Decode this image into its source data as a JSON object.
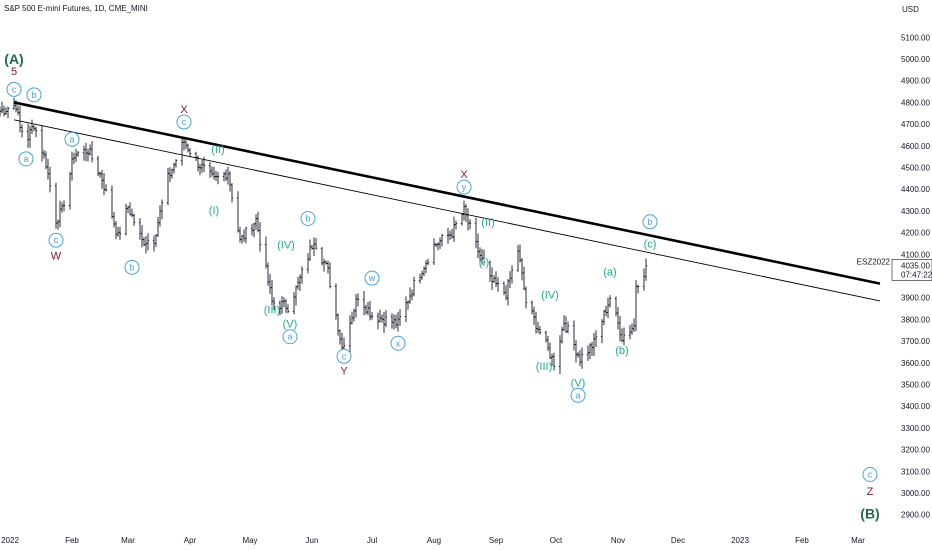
{
  "chart_data": {
    "type": "candlestick",
    "title": "S&P 500 E-mini Futures, 1D, CME_MINI",
    "currency": "USD",
    "colors": {
      "wave_teal": "#22ab94",
      "wave_blue": "#4aa3df",
      "wave_maroon": "#8e1b2c",
      "wave_green": "#1e6b52",
      "candle": "#131722",
      "price_tag_bg": "#ffffff"
    },
    "ylim": [
      2820,
      5180
    ],
    "xlim": [
      "2021-12-27",
      "2023-03-18"
    ],
    "y_ticks": [
      "5100.00",
      "5000.00",
      "4900.00",
      "4800.00",
      "4700.00",
      "4600.00",
      "4500.00",
      "4400.00",
      "4300.00",
      "4200.00",
      "4100.00",
      "4000.00",
      "3900.00",
      "3800.00",
      "3700.00",
      "3600.00",
      "3500.00",
      "3400.00",
      "3300.00",
      "3200.00",
      "3100.00",
      "3000.00",
      "2900.00"
    ],
    "y_tick_values": [
      5100,
      5000,
      4900,
      4800,
      4700,
      4600,
      4500,
      4400,
      4300,
      4200,
      4100,
      4000,
      3900,
      3800,
      3700,
      3600,
      3500,
      3400,
      3300,
      3200,
      3100,
      3000,
      2900
    ],
    "x_ticks": [
      {
        "label": "2022",
        "date": "2022-01-01"
      },
      {
        "label": "Feb",
        "date": "2022-02-01"
      },
      {
        "label": "Mar",
        "date": "2022-03-01"
      },
      {
        "label": "Apr",
        "date": "2022-04-01"
      },
      {
        "label": "May",
        "date": "2022-05-01"
      },
      {
        "label": "Jun",
        "date": "2022-06-01"
      },
      {
        "label": "Jul",
        "date": "2022-07-01"
      },
      {
        "label": "Aug",
        "date": "2022-08-01"
      },
      {
        "label": "Sep",
        "date": "2022-09-01"
      },
      {
        "label": "Oct",
        "date": "2022-10-01"
      },
      {
        "label": "Nov",
        "date": "2022-11-01"
      },
      {
        "label": "Dec",
        "date": "2022-12-01"
      },
      {
        "label": "2023",
        "date": "2023-01-01"
      },
      {
        "label": "Feb",
        "date": "2023-02-01"
      },
      {
        "label": "Mar",
        "date": "2023-03-01"
      }
    ],
    "price_tag": {
      "symbol": "ESZ2022",
      "price": "4035.00",
      "price_value": 4035,
      "countdown": "07:47:22"
    },
    "close_path": [
      [
        "2021-12-27",
        4760
      ],
      [
        "2022-01-04",
        4790
      ],
      [
        "2022-01-06",
        4680
      ],
      [
        "2022-01-10",
        4640
      ],
      [
        "2022-01-13",
        4700
      ],
      [
        "2022-01-19",
        4520
      ],
      [
        "2022-01-24",
        4260
      ],
      [
        "2022-01-27",
        4300
      ],
      [
        "2022-02-02",
        4560
      ],
      [
        "2022-02-09",
        4580
      ],
      [
        "2022-02-16",
        4450
      ],
      [
        "2022-02-24",
        4180
      ],
      [
        "2022-03-01",
        4320
      ],
      [
        "2022-03-08",
        4160
      ],
      [
        "2022-03-14",
        4170
      ],
      [
        "2022-03-21",
        4450
      ],
      [
        "2022-03-29",
        4620
      ],
      [
        "2022-04-05",
        4520
      ],
      [
        "2022-04-13",
        4440
      ],
      [
        "2022-04-20",
        4480
      ],
      [
        "2022-04-26",
        4160
      ],
      [
        "2022-05-04",
        4260
      ],
      [
        "2022-05-12",
        3880
      ],
      [
        "2022-05-20",
        3860
      ],
      [
        "2022-05-25",
        3960
      ],
      [
        "2022-06-02",
        4170
      ],
      [
        "2022-06-09",
        4020
      ],
      [
        "2022-06-16",
        3670
      ],
      [
        "2022-06-24",
        3910
      ],
      [
        "2022-07-01",
        3820
      ],
      [
        "2022-07-14",
        3780
      ],
      [
        "2022-07-22",
        3960
      ],
      [
        "2022-08-01",
        4140
      ],
      [
        "2022-08-10",
        4200
      ],
      [
        "2022-08-16",
        4300
      ],
      [
        "2022-08-22",
        4140
      ],
      [
        "2022-08-29",
        3980
      ],
      [
        "2022-09-06",
        3920
      ],
      [
        "2022-09-12",
        4120
      ],
      [
        "2022-09-16",
        3880
      ],
      [
        "2022-09-22",
        3760
      ],
      [
        "2022-09-30",
        3600
      ],
      [
        "2022-10-05",
        3790
      ],
      [
        "2022-10-13",
        3620
      ],
      [
        "2022-10-20",
        3690
      ],
      [
        "2022-10-28",
        3900
      ],
      [
        "2022-11-03",
        3720
      ],
      [
        "2022-11-09",
        3770
      ],
      [
        "2022-11-10",
        3960
      ],
      [
        "2022-11-15",
        4035
      ]
    ],
    "trendlines": [
      {
        "style": "thick",
        "start": [
          "2022-01-03",
          4800
        ],
        "end": [
          "2023-03-12",
          3965
        ]
      },
      {
        "style": "thin",
        "start": [
          "2022-01-03",
          4720
        ],
        "end": [
          "2023-03-12",
          3885
        ]
      }
    ],
    "wave_labels": [
      {
        "text": "(A)",
        "color": "wave_green",
        "style": "big",
        "date": "2022-01-03",
        "price": 5000
      },
      {
        "text": "5",
        "color": "wave_maroon",
        "style": "plain",
        "date": "2022-01-03",
        "price": 4945
      },
      {
        "text": "c",
        "color": "wave_blue",
        "style": "circle",
        "date": "2022-01-03",
        "price": 4860
      },
      {
        "text": "b",
        "color": "wave_blue",
        "style": "circle",
        "date": "2022-01-13",
        "price": 4835
      },
      {
        "text": "a",
        "color": "wave_blue",
        "style": "circle",
        "date": "2022-01-09",
        "price": 4540
      },
      {
        "text": "a",
        "color": "wave_blue",
        "style": "circle",
        "date": "2022-02-01",
        "price": 4630
      },
      {
        "text": "c",
        "color": "wave_blue",
        "style": "circle",
        "date": "2022-01-24",
        "price": 4165
      },
      {
        "text": "W",
        "color": "wave_maroon",
        "style": "plain",
        "date": "2022-01-24",
        "price": 4095
      },
      {
        "text": "b",
        "color": "wave_blue",
        "style": "circle",
        "date": "2022-03-03",
        "price": 4040
      },
      {
        "text": "X",
        "color": "wave_maroon",
        "style": "plain",
        "date": "2022-03-29",
        "price": 4770
      },
      {
        "text": "c",
        "color": "wave_blue",
        "style": "circle",
        "date": "2022-03-29",
        "price": 4710
      },
      {
        "text": "(II)",
        "color": "wave_teal",
        "style": "plain",
        "date": "2022-04-15",
        "price": 4585
      },
      {
        "text": "(I)",
        "color": "wave_teal",
        "style": "plain",
        "date": "2022-04-13",
        "price": 4305
      },
      {
        "text": "b",
        "color": "wave_blue",
        "style": "circle",
        "date": "2022-05-30",
        "price": 4265
      },
      {
        "text": "(IV)",
        "color": "wave_teal",
        "style": "plain",
        "date": "2022-05-19",
        "price": 4145
      },
      {
        "text": "(III)",
        "color": "wave_teal",
        "style": "plain",
        "date": "2022-05-12",
        "price": 3845
      },
      {
        "text": "(V)",
        "color": "wave_teal",
        "style": "plain",
        "date": "2022-05-21",
        "price": 3780
      },
      {
        "text": "a",
        "color": "wave_blue",
        "style": "circle",
        "date": "2022-05-21",
        "price": 3720
      },
      {
        "text": "w",
        "color": "wave_blue",
        "style": "circle",
        "date": "2022-07-01",
        "price": 3990
      },
      {
        "text": "c",
        "color": "wave_blue",
        "style": "circle",
        "date": "2022-06-17",
        "price": 3630
      },
      {
        "text": "Y",
        "color": "wave_maroon",
        "style": "plain",
        "date": "2022-06-17",
        "price": 3565
      },
      {
        "text": "x",
        "color": "wave_blue",
        "style": "circle",
        "date": "2022-07-14",
        "price": 3690
      },
      {
        "text": "X",
        "color": "wave_maroon",
        "style": "plain",
        "date": "2022-08-16",
        "price": 4470
      },
      {
        "text": "y",
        "color": "wave_blue",
        "style": "circle",
        "date": "2022-08-16",
        "price": 4410
      },
      {
        "text": "(II)",
        "color": "wave_teal",
        "style": "plain",
        "date": "2022-08-28",
        "price": 4250
      },
      {
        "text": "(I)",
        "color": "wave_teal",
        "style": "plain",
        "date": "2022-08-26",
        "price": 4065
      },
      {
        "text": "(IV)",
        "color": "wave_teal",
        "style": "plain",
        "date": "2022-09-28",
        "price": 3915
      },
      {
        "text": "(III)",
        "color": "wave_teal",
        "style": "plain",
        "date": "2022-09-25",
        "price": 3585
      },
      {
        "text": "(V)",
        "color": "wave_teal",
        "style": "plain",
        "date": "2022-10-12",
        "price": 3510
      },
      {
        "text": "a",
        "color": "wave_blue",
        "style": "circle",
        "date": "2022-10-12",
        "price": 3450
      },
      {
        "text": "(a)",
        "color": "wave_teal",
        "style": "plain",
        "date": "2022-10-28",
        "price": 4020
      },
      {
        "text": "(b)",
        "color": "wave_teal",
        "style": "plain",
        "date": "2022-11-03",
        "price": 3660
      },
      {
        "text": "b",
        "color": "wave_blue",
        "style": "circle",
        "date": "2022-11-17",
        "price": 4250
      },
      {
        "text": "(c)",
        "color": "wave_teal",
        "style": "plain",
        "date": "2022-11-17",
        "price": 4150
      },
      {
        "text": "c",
        "color": "wave_blue",
        "style": "circle",
        "date": "2023-03-07",
        "price": 3085
      },
      {
        "text": "Z",
        "color": "wave_maroon",
        "style": "plain",
        "date": "2023-03-07",
        "price": 3010
      },
      {
        "text": "(B)",
        "color": "wave_green",
        "style": "big",
        "date": "2023-03-07",
        "price": 2905
      }
    ]
  }
}
